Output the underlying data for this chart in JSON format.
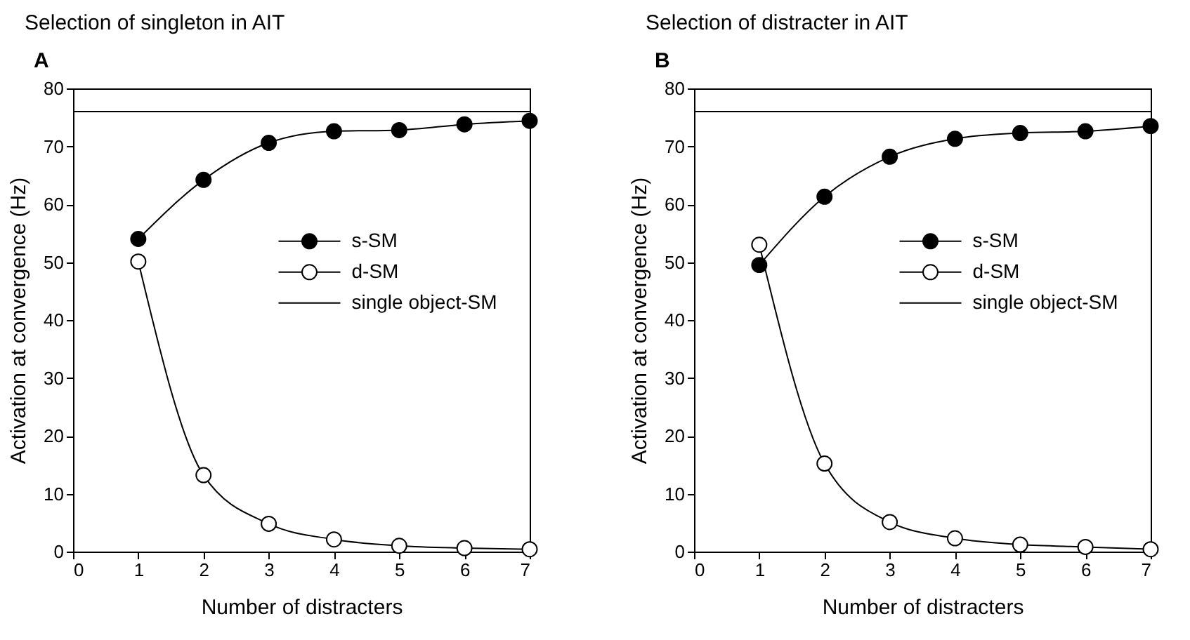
{
  "chart_data": [
    {
      "type": "line",
      "title": "Selection of singleton in AIT",
      "annotations": [
        "A"
      ],
      "xlabel": "Number of distracters",
      "ylabel": "Activation at convergence (Hz)",
      "x": [
        1,
        2,
        3,
        4,
        5,
        6,
        7
      ],
      "xlim": [
        0,
        7
      ],
      "xticks": [
        0,
        1,
        2,
        3,
        4,
        5,
        6,
        7
      ],
      "ylim": [
        0,
        80
      ],
      "yticks": [
        0,
        10,
        20,
        30,
        40,
        50,
        60,
        70,
        80
      ],
      "grid": false,
      "legend": "right",
      "marker": "circle",
      "line_style": "solid",
      "series": [
        {
          "name": "s-SM",
          "color": "#000000",
          "values": [
            54,
            64.2,
            70.6,
            72.6,
            72.8,
            73.8,
            74.4
          ]
        },
        {
          "name": "d-SM",
          "color": "#ffffff",
          "values": [
            50.1,
            13.2,
            4.8,
            2.1,
            1.0,
            0.6,
            0.4
          ]
        }
      ],
      "ref_lines": [
        {
          "axis": "y",
          "value": 76,
          "label": "single object-SM",
          "color": "#000000"
        }
      ]
    },
    {
      "type": "line",
      "title": "Selection of distracter in AIT",
      "annotations": [
        "B"
      ],
      "xlabel": "Number of distracters",
      "ylabel": "Activation at convergence (Hz)",
      "x": [
        1,
        2,
        3,
        4,
        5,
        6,
        7
      ],
      "xlim": [
        0,
        7
      ],
      "xticks": [
        0,
        1,
        2,
        3,
        4,
        5,
        6,
        7
      ],
      "ylim": [
        0,
        80
      ],
      "yticks": [
        0,
        10,
        20,
        30,
        40,
        50,
        60,
        70,
        80
      ],
      "grid": false,
      "legend": "right",
      "marker": "circle",
      "line_style": "solid",
      "series": [
        {
          "name": "s-SM",
          "color": "#000000",
          "values": [
            49.5,
            61.3,
            68.2,
            71.3,
            72.3,
            72.6,
            73.5
          ]
        },
        {
          "name": "d-SM",
          "color": "#ffffff",
          "values": [
            53,
            15.2,
            5.1,
            2.3,
            1.2,
            0.8,
            0.4
          ]
        }
      ],
      "ref_lines": [
        {
          "axis": "y",
          "value": 76,
          "label": "single object-SM",
          "color": "#000000"
        }
      ]
    }
  ]
}
